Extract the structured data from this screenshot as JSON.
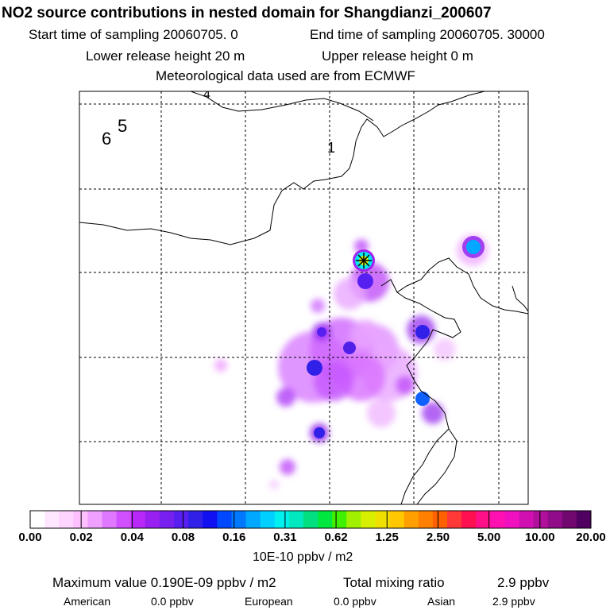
{
  "header": {
    "title": "NO2 source contributions in nested domain for Shangdianzi_200607",
    "start_time": "Start time of sampling 20060705.     0",
    "end_time": "End time of sampling 20060705. 30000",
    "lower_release": "Lower release height   20 m",
    "upper_release": "Upper release height    0 m",
    "met_data": "Meteorological data used are from ECMWF"
  },
  "chart_data": {
    "type": "heatmap",
    "title": "NO2 source contributions in nested domain for Shangdianzi_200607",
    "region_labels": [
      "4",
      "6",
      "5",
      "1"
    ],
    "receptor_marker": "star",
    "colorbar": {
      "ticks": [
        "0.00",
        "0.02",
        "0.04",
        "0.08",
        "0.16",
        "0.31",
        "0.62",
        "1.25",
        "2.50",
        "5.00",
        "10.00",
        "20.00"
      ],
      "unit": "10E-10 ppbv / m2",
      "colors": [
        "#ffffff",
        "#ffe8ff",
        "#ffd4ff",
        "#ffc0ff",
        "#f0a0ff",
        "#e078ff",
        "#d050ff",
        "#b828f8",
        "#9820f0",
        "#7820f0",
        "#5820f0",
        "#3020e8",
        "#1010f0",
        "#0048ff",
        "#0078ff",
        "#00a8ff",
        "#00d0ff",
        "#00f0f0",
        "#00e8c0",
        "#00e080",
        "#00e840",
        "#40f000",
        "#a0f000",
        "#d8f000",
        "#f0e000",
        "#ffc800",
        "#ffa000",
        "#ff8000",
        "#ff6000",
        "#ff3838",
        "#ff1050",
        "#ff1088",
        "#ff10b0",
        "#f010c0",
        "#d010b0",
        "#b0109c",
        "#900c88",
        "#700870",
        "#500060"
      ]
    }
  },
  "footer": {
    "max_value": "Maximum value  0.190E-09 ppbv / m2",
    "total_label": "Total mixing ratio",
    "total_value": "2.9 ppbv",
    "american_label": "American",
    "american_value": "0.0 ppbv",
    "european_label": "European",
    "european_value": "0.0 ppbv",
    "asian_label": "Asian",
    "asian_value": "2.9 ppbv"
  }
}
